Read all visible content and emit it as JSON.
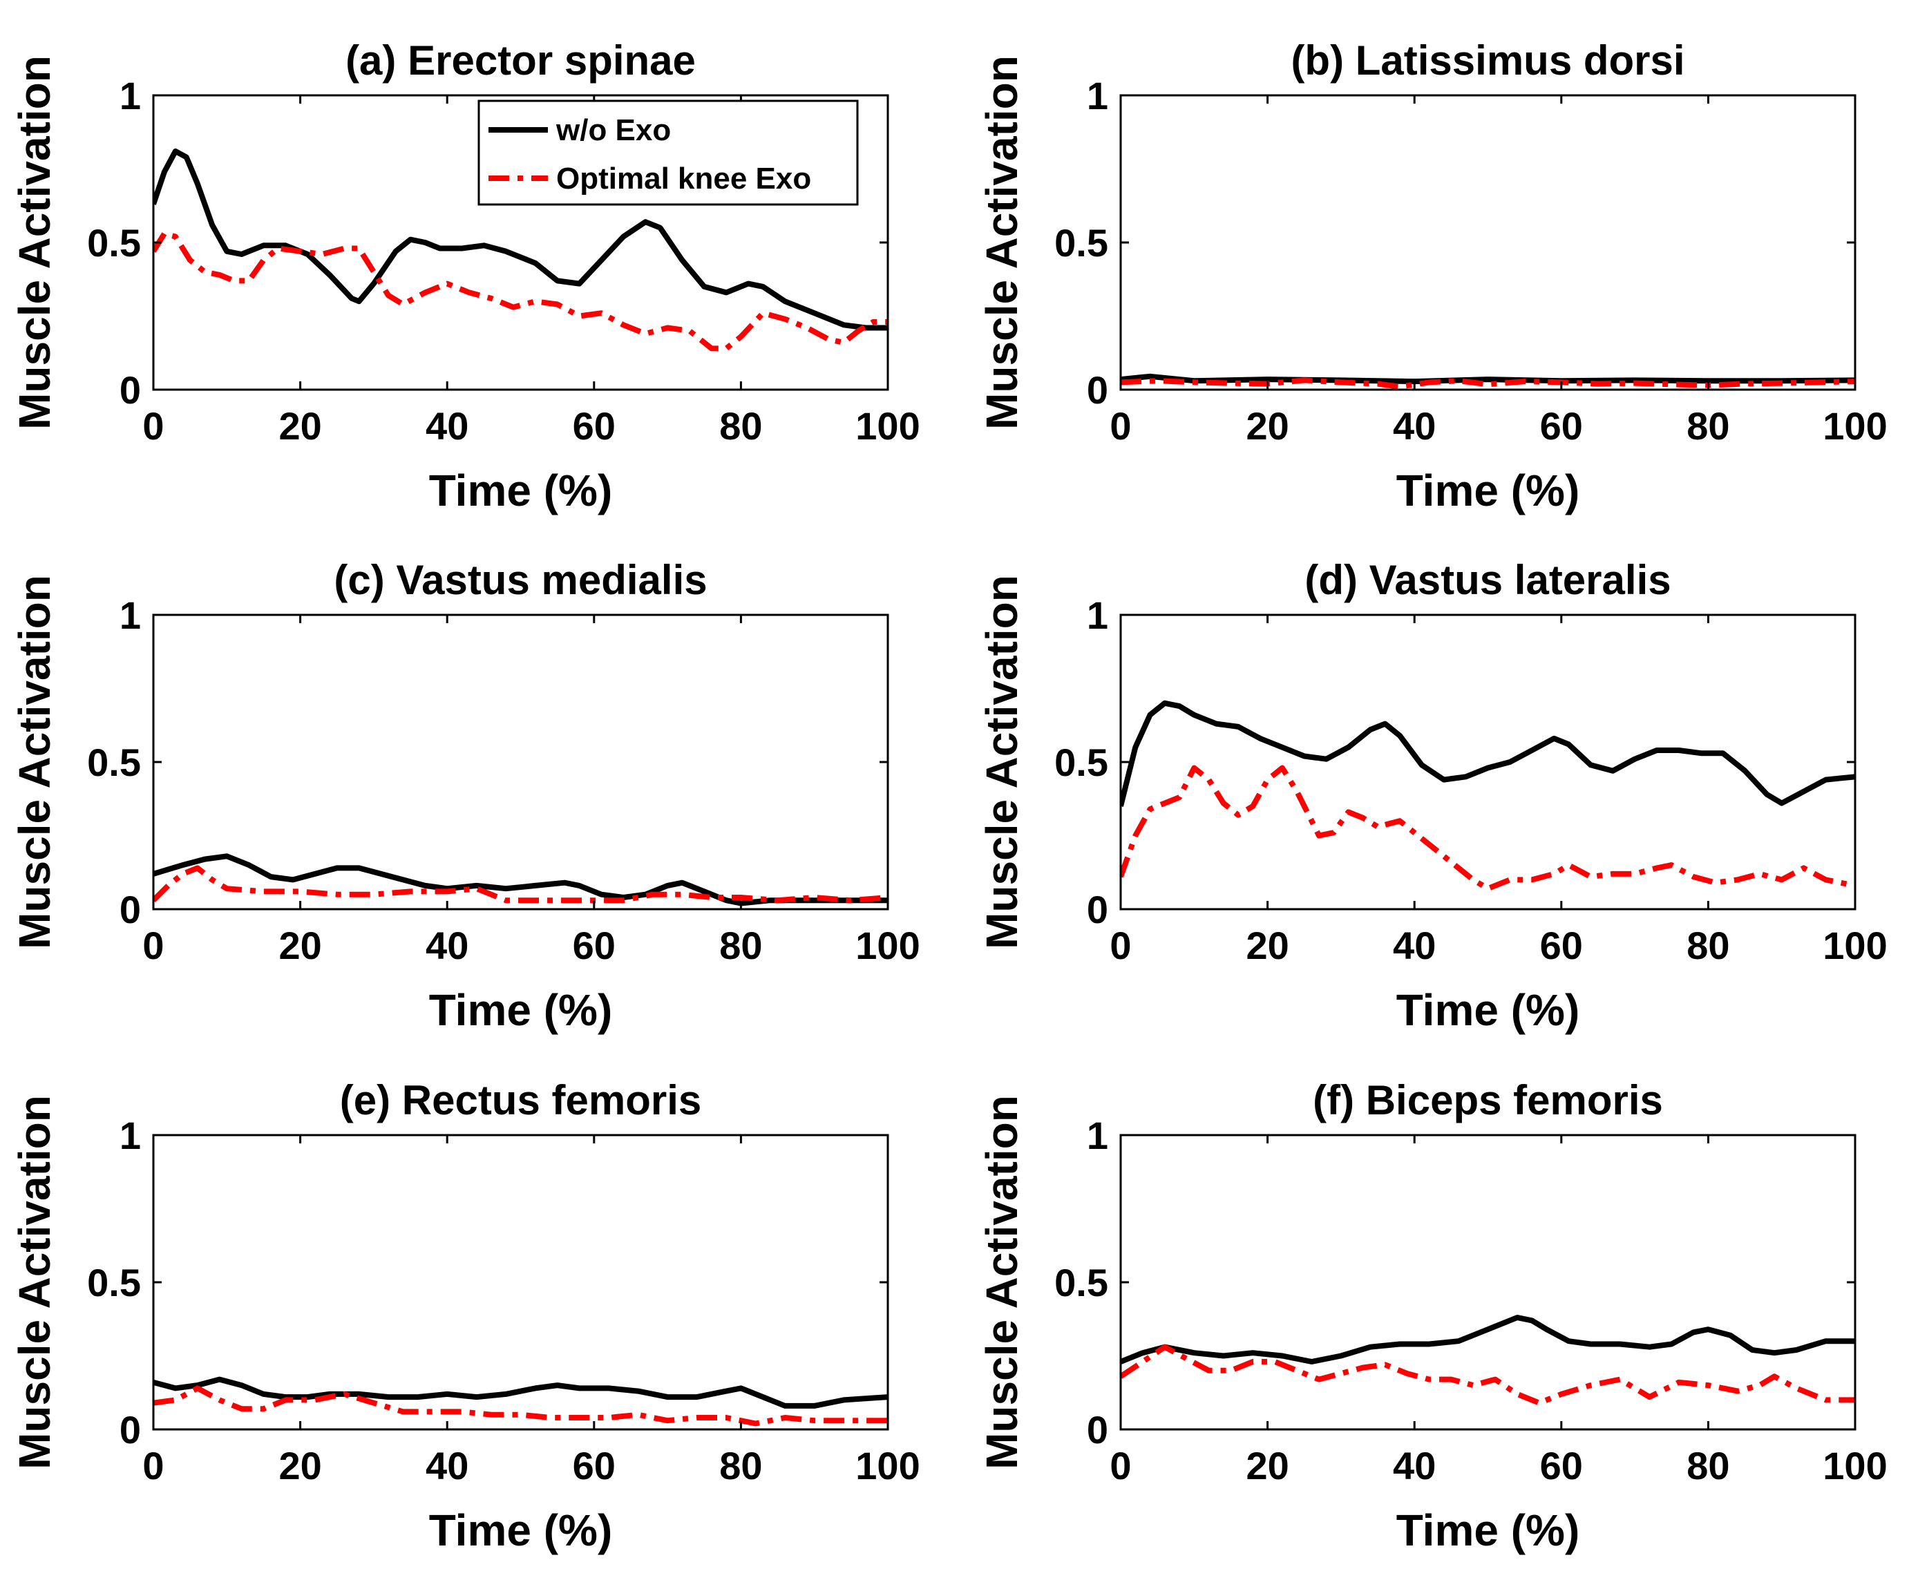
{
  "legend": {
    "entries": [
      {
        "label": "w/o Exo",
        "color": "#000000",
        "dash": "solid"
      },
      {
        "label": "Optimal knee Exo",
        "color": "#ff0000",
        "dash": "dashdot"
      }
    ]
  },
  "chart_data": [
    {
      "type": "line",
      "title": "(a) Erector spinae",
      "xlabel": "Time (%)",
      "ylabel": "Muscle Activation",
      "xlim": [
        0,
        100
      ],
      "ylim": [
        0,
        1
      ],
      "xticks": [
        "0",
        "20",
        "40",
        "60",
        "80",
        "100"
      ],
      "yticks": [
        "0",
        "0.5",
        "1"
      ],
      "grid": false,
      "legend": "top-center",
      "series": [
        {
          "name": "w/o Exo",
          "color": "#000000",
          "dash": "solid",
          "x": [
            0,
            1.5,
            3,
            4.5,
            6,
            8,
            10,
            12,
            15,
            18,
            21,
            24,
            27,
            28,
            30,
            33,
            35,
            37,
            39,
            42,
            45,
            48,
            52,
            55,
            58,
            61,
            64,
            67,
            69,
            72,
            75,
            78,
            81,
            83,
            86,
            90,
            94,
            97,
            100
          ],
          "y": [
            0.63,
            0.74,
            0.81,
            0.79,
            0.7,
            0.56,
            0.47,
            0.46,
            0.49,
            0.49,
            0.46,
            0.39,
            0.31,
            0.3,
            0.36,
            0.47,
            0.51,
            0.5,
            0.48,
            0.48,
            0.49,
            0.47,
            0.43,
            0.37,
            0.36,
            0.44,
            0.52,
            0.57,
            0.55,
            0.44,
            0.35,
            0.33,
            0.36,
            0.35,
            0.3,
            0.26,
            0.22,
            0.21,
            0.21
          ]
        },
        {
          "name": "Optimal knee Exo",
          "color": "#ff0000",
          "dash": "dashdot",
          "x": [
            0,
            1.5,
            3,
            5,
            7,
            9,
            11,
            13,
            15,
            17,
            20,
            23,
            26,
            28,
            30,
            32,
            34,
            37,
            40,
            43,
            46,
            49,
            52,
            55,
            58,
            61,
            64,
            67,
            70,
            73,
            76,
            78,
            80,
            83,
            86,
            89,
            92,
            94,
            96,
            98,
            100
          ],
          "y": [
            0.47,
            0.53,
            0.52,
            0.44,
            0.4,
            0.39,
            0.37,
            0.37,
            0.44,
            0.48,
            0.47,
            0.46,
            0.48,
            0.48,
            0.4,
            0.32,
            0.29,
            0.33,
            0.36,
            0.33,
            0.31,
            0.28,
            0.3,
            0.29,
            0.25,
            0.26,
            0.22,
            0.19,
            0.21,
            0.2,
            0.14,
            0.14,
            0.18,
            0.26,
            0.24,
            0.21,
            0.17,
            0.16,
            0.2,
            0.23,
            0.23
          ]
        }
      ]
    },
    {
      "type": "line",
      "title": "(b) Latissimus dorsi",
      "xlabel": "Time (%)",
      "ylabel": "Muscle Activation",
      "xlim": [
        0,
        100
      ],
      "ylim": [
        0,
        1
      ],
      "xticks": [
        "0",
        "20",
        "40",
        "60",
        "80",
        "100"
      ],
      "yticks": [
        "0",
        "0.5",
        "1"
      ],
      "grid": false,
      "series": [
        {
          "name": "w/o Exo",
          "color": "#000000",
          "dash": "solid",
          "x": [
            0,
            4,
            10,
            20,
            30,
            40,
            50,
            60,
            70,
            80,
            90,
            100
          ],
          "y": [
            0.035,
            0.045,
            0.03,
            0.035,
            0.032,
            0.028,
            0.035,
            0.03,
            0.032,
            0.03,
            0.03,
            0.032
          ]
        },
        {
          "name": "Optimal knee Exo",
          "color": "#ff0000",
          "dash": "dashdot",
          "x": [
            0,
            5,
            10,
            15,
            20,
            25,
            30,
            35,
            38,
            42,
            46,
            50,
            55,
            60,
            65,
            70,
            75,
            80,
            85,
            90,
            95,
            100
          ],
          "y": [
            0.025,
            0.03,
            0.025,
            0.022,
            0.02,
            0.032,
            0.025,
            0.02,
            0.01,
            0.025,
            0.03,
            0.018,
            0.028,
            0.025,
            0.02,
            0.022,
            0.018,
            0.015,
            0.02,
            0.022,
            0.025,
            0.028
          ]
        }
      ]
    },
    {
      "type": "line",
      "title": "(c) Vastus medialis",
      "xlabel": "Time (%)",
      "ylabel": "Muscle Activation",
      "xlim": [
        0,
        100
      ],
      "ylim": [
        0,
        1
      ],
      "xticks": [
        "0",
        "20",
        "40",
        "60",
        "80",
        "100"
      ],
      "yticks": [
        "0",
        "0.5",
        "1"
      ],
      "grid": false,
      "series": [
        {
          "name": "w/o Exo",
          "color": "#000000",
          "dash": "solid",
          "x": [
            0,
            4,
            7,
            10,
            13,
            16,
            19,
            22,
            25,
            28,
            31,
            34,
            37,
            40,
            44,
            48,
            52,
            56,
            58,
            61,
            64,
            67,
            70,
            72,
            75,
            78,
            80,
            84,
            88,
            92,
            96,
            100
          ],
          "y": [
            0.12,
            0.15,
            0.17,
            0.18,
            0.15,
            0.11,
            0.1,
            0.12,
            0.14,
            0.14,
            0.12,
            0.1,
            0.08,
            0.07,
            0.08,
            0.07,
            0.08,
            0.09,
            0.08,
            0.05,
            0.04,
            0.05,
            0.08,
            0.09,
            0.06,
            0.03,
            0.02,
            0.03,
            0.03,
            0.03,
            0.03,
            0.03
          ]
        },
        {
          "name": "Optimal knee Exo",
          "color": "#ff0000",
          "dash": "dashdot",
          "x": [
            0,
            2,
            4,
            6,
            8,
            10,
            15,
            20,
            25,
            30,
            35,
            40,
            44,
            48,
            52,
            56,
            60,
            64,
            68,
            72,
            76,
            80,
            85,
            90,
            95,
            100
          ],
          "y": [
            0.03,
            0.08,
            0.12,
            0.14,
            0.1,
            0.07,
            0.06,
            0.06,
            0.05,
            0.05,
            0.06,
            0.06,
            0.07,
            0.03,
            0.03,
            0.03,
            0.03,
            0.03,
            0.05,
            0.05,
            0.04,
            0.04,
            0.03,
            0.04,
            0.03,
            0.04
          ]
        }
      ]
    },
    {
      "type": "line",
      "title": "(d) Vastus lateralis",
      "xlabel": "Time (%)",
      "ylabel": "Muscle Activation",
      "xlim": [
        0,
        100
      ],
      "ylim": [
        0,
        1
      ],
      "xticks": [
        "0",
        "20",
        "40",
        "60",
        "80",
        "100"
      ],
      "yticks": [
        "0",
        "0.5",
        "1"
      ],
      "grid": false,
      "series": [
        {
          "name": "w/o Exo",
          "color": "#000000",
          "dash": "solid",
          "x": [
            0,
            2,
            4,
            6,
            8,
            10,
            13,
            16,
            19,
            22,
            25,
            28,
            31,
            34,
            36,
            38,
            41,
            44,
            47,
            50,
            53,
            56,
            59,
            61,
            64,
            67,
            70,
            73,
            76,
            79,
            82,
            85,
            88,
            90,
            93,
            96,
            100
          ],
          "y": [
            0.35,
            0.55,
            0.66,
            0.7,
            0.69,
            0.66,
            0.63,
            0.62,
            0.58,
            0.55,
            0.52,
            0.51,
            0.55,
            0.61,
            0.63,
            0.59,
            0.49,
            0.44,
            0.45,
            0.48,
            0.5,
            0.54,
            0.58,
            0.56,
            0.49,
            0.47,
            0.51,
            0.54,
            0.54,
            0.53,
            0.53,
            0.47,
            0.39,
            0.36,
            0.4,
            0.44,
            0.45
          ]
        },
        {
          "name": "Optimal knee Exo",
          "color": "#ff0000",
          "dash": "dashdot",
          "x": [
            0,
            2,
            4,
            6,
            8,
            10,
            12,
            14,
            16,
            18,
            20,
            22,
            24,
            27,
            29,
            31,
            33,
            35,
            38,
            41,
            44,
            46,
            48,
            50,
            53,
            56,
            59,
            61,
            64,
            67,
            70,
            73,
            75,
            78,
            81,
            84,
            87,
            90,
            93,
            96,
            100
          ],
          "y": [
            0.11,
            0.25,
            0.34,
            0.36,
            0.38,
            0.48,
            0.44,
            0.36,
            0.32,
            0.35,
            0.44,
            0.48,
            0.4,
            0.25,
            0.26,
            0.33,
            0.31,
            0.28,
            0.3,
            0.24,
            0.18,
            0.14,
            0.1,
            0.07,
            0.1,
            0.1,
            0.12,
            0.15,
            0.11,
            0.12,
            0.12,
            0.14,
            0.15,
            0.11,
            0.09,
            0.1,
            0.12,
            0.1,
            0.14,
            0.1,
            0.08
          ]
        }
      ]
    },
    {
      "type": "line",
      "title": "(e) Rectus femoris",
      "xlabel": "Time (%)",
      "ylabel": "Muscle Activation",
      "xlim": [
        0,
        100
      ],
      "ylim": [
        0,
        1
      ],
      "xticks": [
        "0",
        "20",
        "40",
        "60",
        "80",
        "100"
      ],
      "yticks": [
        "0",
        "0.5",
        "1"
      ],
      "grid": false,
      "series": [
        {
          "name": "w/o Exo",
          "color": "#000000",
          "dash": "solid",
          "x": [
            0,
            3,
            6,
            9,
            12,
            15,
            18,
            21,
            24,
            28,
            32,
            36,
            40,
            44,
            48,
            52,
            55,
            58,
            62,
            66,
            70,
            74,
            78,
            80,
            83,
            86,
            90,
            94,
            100
          ],
          "y": [
            0.16,
            0.14,
            0.15,
            0.17,
            0.15,
            0.12,
            0.11,
            0.11,
            0.12,
            0.12,
            0.11,
            0.11,
            0.12,
            0.11,
            0.12,
            0.14,
            0.15,
            0.14,
            0.14,
            0.13,
            0.11,
            0.11,
            0.13,
            0.14,
            0.11,
            0.08,
            0.08,
            0.1,
            0.11
          ]
        },
        {
          "name": "Optimal knee Exo",
          "color": "#ff0000",
          "dash": "dashdot",
          "x": [
            0,
            3,
            6,
            9,
            12,
            15,
            18,
            22,
            26,
            30,
            34,
            38,
            42,
            46,
            50,
            54,
            58,
            62,
            66,
            70,
            74,
            78,
            82,
            86,
            90,
            95,
            100
          ],
          "y": [
            0.09,
            0.1,
            0.14,
            0.1,
            0.07,
            0.07,
            0.1,
            0.1,
            0.12,
            0.09,
            0.06,
            0.06,
            0.06,
            0.05,
            0.05,
            0.04,
            0.04,
            0.04,
            0.05,
            0.03,
            0.04,
            0.04,
            0.02,
            0.04,
            0.03,
            0.03,
            0.03
          ]
        }
      ]
    },
    {
      "type": "line",
      "title": "(f) Biceps femoris",
      "xlabel": "Time (%)",
      "ylabel": "Muscle Activation",
      "xlim": [
        0,
        100
      ],
      "ylim": [
        0,
        1
      ],
      "xticks": [
        "0",
        "20",
        "40",
        "60",
        "80",
        "100"
      ],
      "yticks": [
        "0",
        "0.5",
        "1"
      ],
      "grid": false,
      "series": [
        {
          "name": "w/o Exo",
          "color": "#000000",
          "dash": "solid",
          "x": [
            0,
            3,
            6,
            10,
            14,
            18,
            22,
            26,
            30,
            34,
            38,
            42,
            46,
            50,
            54,
            56,
            58,
            61,
            64,
            68,
            72,
            75,
            78,
            80,
            83,
            86,
            89,
            92,
            96,
            100
          ],
          "y": [
            0.23,
            0.26,
            0.28,
            0.26,
            0.25,
            0.26,
            0.25,
            0.23,
            0.25,
            0.28,
            0.29,
            0.29,
            0.3,
            0.34,
            0.38,
            0.37,
            0.34,
            0.3,
            0.29,
            0.29,
            0.28,
            0.29,
            0.33,
            0.34,
            0.32,
            0.27,
            0.26,
            0.27,
            0.3,
            0.3
          ]
        },
        {
          "name": "Optimal knee Exo",
          "color": "#ff0000",
          "dash": "dashdot",
          "x": [
            0,
            3,
            6,
            9,
            12,
            15,
            18,
            21,
            24,
            27,
            30,
            33,
            36,
            39,
            42,
            45,
            48,
            51,
            54,
            57,
            60,
            64,
            68,
            72,
            76,
            80,
            84,
            87,
            89,
            92,
            96,
            100
          ],
          "y": [
            0.18,
            0.23,
            0.28,
            0.24,
            0.2,
            0.2,
            0.23,
            0.23,
            0.2,
            0.17,
            0.19,
            0.21,
            0.22,
            0.19,
            0.17,
            0.17,
            0.15,
            0.17,
            0.12,
            0.09,
            0.12,
            0.15,
            0.17,
            0.11,
            0.16,
            0.15,
            0.13,
            0.15,
            0.18,
            0.14,
            0.1,
            0.1
          ]
        }
      ]
    }
  ]
}
